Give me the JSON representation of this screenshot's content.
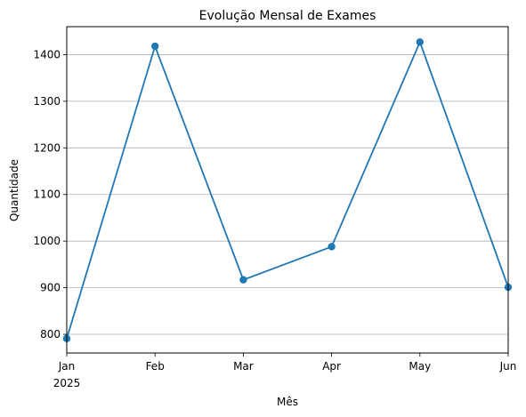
{
  "chart_data": {
    "type": "line",
    "title": "Evolução Mensal de Exames",
    "xlabel": "Mês",
    "ylabel": "Quantidade",
    "categories": [
      "Jan",
      "Feb",
      "Mar",
      "Apr",
      "May",
      "Jun"
    ],
    "x_year_label": "2025",
    "values": [
      791,
      1418,
      917,
      988,
      1427,
      901
    ],
    "ylim": [
      760,
      1460
    ],
    "yticks": [
      800,
      900,
      1000,
      1100,
      1200,
      1300,
      1400
    ],
    "grid": "y",
    "line_color": "#1f77b4"
  }
}
